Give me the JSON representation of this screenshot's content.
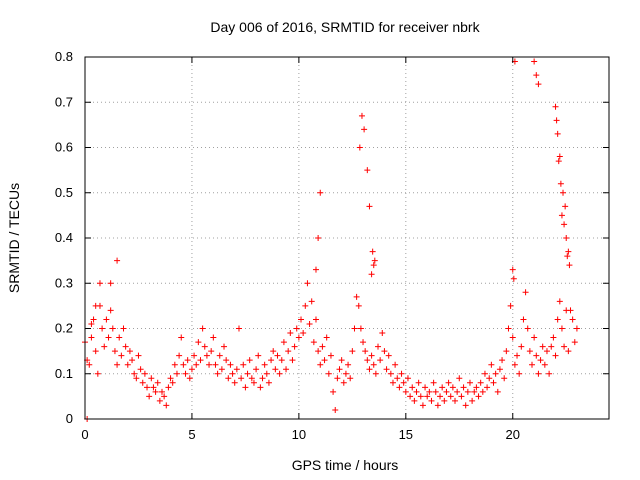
{
  "chart_data": {
    "type": "scatter",
    "title": "Day 006 of 2016, SRMTID for receiver nbrk",
    "xlabel": "GPS time / hours",
    "ylabel": "SRMTID / TECUs",
    "xlim": [
      0,
      24.5
    ],
    "ylim": [
      0,
      0.8
    ],
    "xticks": [
      0,
      5,
      10,
      15,
      20
    ],
    "xtick_labels": [
      "0",
      "5",
      "10",
      "15",
      "20"
    ],
    "yticks": [
      0,
      0.1,
      0.2,
      0.3,
      0.4,
      0.5,
      0.6,
      0.7,
      0.8
    ],
    "ytick_labels": [
      "0",
      "0.1",
      "0.2",
      "0.3",
      "0.4",
      "0.5",
      "0.6",
      "0.7",
      "0.8"
    ],
    "grid": true,
    "marker": "+",
    "colors": {
      "series": "#ff0000",
      "grid": "#a0a0a0",
      "axis": "#000000"
    },
    "series": [
      {
        "name": "nbrk",
        "x": [
          0.0,
          0.1,
          0.2,
          0.3,
          0.4,
          0.5,
          0.6,
          0.7,
          0.8,
          0.9,
          1.0,
          1.1,
          1.2,
          1.3,
          1.4,
          1.5,
          1.6,
          1.7,
          1.8,
          1.9,
          2.0,
          2.1,
          2.2,
          2.3,
          2.4,
          2.5,
          2.6,
          2.7,
          2.8,
          2.9,
          3.0,
          3.1,
          3.2,
          3.3,
          3.4,
          3.5,
          3.6,
          3.7,
          3.8,
          3.9,
          4.0,
          4.1,
          4.2,
          4.3,
          4.4,
          4.5,
          4.6,
          4.7,
          4.8,
          4.9,
          5.0,
          5.1,
          5.2,
          5.3,
          5.4,
          5.5,
          5.6,
          5.7,
          5.8,
          5.9,
          6.0,
          6.1,
          6.2,
          6.3,
          6.4,
          6.5,
          6.6,
          6.7,
          6.8,
          6.9,
          7.0,
          7.1,
          7.2,
          7.3,
          7.4,
          7.5,
          7.6,
          7.7,
          7.8,
          7.9,
          8.0,
          8.1,
          8.2,
          8.3,
          8.4,
          8.5,
          8.6,
          8.7,
          8.8,
          8.9,
          9.0,
          9.1,
          9.2,
          9.3,
          9.4,
          9.5,
          9.6,
          9.7,
          9.8,
          9.9,
          10.0,
          10.1,
          10.2,
          10.3,
          10.4,
          10.5,
          10.6,
          10.7,
          10.8,
          10.9,
          11.0,
          11.1,
          11.2,
          11.3,
          11.4,
          11.5,
          11.6,
          11.7,
          11.8,
          11.9,
          12.0,
          12.1,
          12.2,
          12.3,
          12.4,
          12.5,
          12.6,
          12.7,
          12.8,
          12.9,
          13.0,
          13.1,
          13.2,
          13.3,
          13.4,
          13.5,
          13.6,
          13.7,
          13.8,
          13.9,
          14.0,
          14.1,
          14.2,
          14.3,
          14.4,
          14.5,
          14.6,
          14.7,
          14.8,
          14.9,
          15.0,
          15.1,
          15.2,
          15.3,
          15.4,
          15.5,
          15.6,
          15.7,
          15.8,
          15.9,
          16.0,
          16.1,
          16.2,
          16.3,
          16.4,
          16.5,
          16.6,
          16.7,
          16.8,
          16.9,
          17.0,
          17.1,
          17.2,
          17.3,
          17.4,
          17.5,
          17.6,
          17.7,
          17.8,
          17.9,
          18.0,
          18.1,
          18.2,
          18.3,
          18.4,
          18.5,
          18.6,
          18.7,
          18.8,
          18.9,
          19.0,
          19.1,
          19.2,
          19.3,
          19.4,
          19.5,
          19.6,
          19.7,
          19.8,
          19.9,
          20.0,
          20.1,
          20.2,
          20.3,
          20.4,
          20.5,
          20.6,
          20.7,
          20.8,
          20.9,
          21.0,
          21.1,
          21.2,
          21.3,
          21.4,
          21.5,
          21.6,
          21.7,
          21.8,
          21.9,
          22.0,
          22.1,
          22.2,
          22.3,
          22.4,
          22.5,
          22.6,
          22.7,
          22.8,
          22.9,
          23.0,
          0.1,
          0.3,
          0.5,
          0.7,
          1.2,
          1.5,
          10.8,
          10.9,
          11.0,
          12.85,
          12.95,
          13.05,
          13.2,
          13.3,
          13.4,
          13.45,
          13.5,
          13.55,
          20.0,
          20.05,
          20.1,
          21.0,
          21.1,
          21.2,
          22.0,
          22.05,
          22.1,
          22.15,
          22.2,
          22.25,
          22.3,
          22.35,
          22.4,
          22.45,
          22.5,
          22.55,
          22.6,
          22.65
        ],
        "y": [
          0.17,
          0.0,
          0.12,
          0.18,
          0.22,
          0.15,
          0.1,
          0.25,
          0.2,
          0.16,
          0.22,
          0.18,
          0.24,
          0.2,
          0.15,
          0.12,
          0.18,
          0.14,
          0.2,
          0.16,
          0.12,
          0.15,
          0.13,
          0.1,
          0.09,
          0.14,
          0.11,
          0.08,
          0.1,
          0.07,
          0.05,
          0.09,
          0.07,
          0.06,
          0.08,
          0.04,
          0.06,
          0.05,
          0.03,
          0.07,
          0.09,
          0.08,
          0.12,
          0.1,
          0.14,
          0.18,
          0.12,
          0.1,
          0.13,
          0.09,
          0.11,
          0.14,
          0.12,
          0.17,
          0.13,
          0.2,
          0.16,
          0.14,
          0.12,
          0.15,
          0.18,
          0.12,
          0.1,
          0.14,
          0.11,
          0.16,
          0.13,
          0.09,
          0.12,
          0.1,
          0.08,
          0.11,
          0.2,
          0.09,
          0.12,
          0.07,
          0.1,
          0.13,
          0.09,
          0.08,
          0.11,
          0.14,
          0.07,
          0.09,
          0.12,
          0.1,
          0.08,
          0.13,
          0.15,
          0.11,
          0.14,
          0.1,
          0.13,
          0.17,
          0.11,
          0.15,
          0.19,
          0.13,
          0.16,
          0.2,
          0.18,
          0.22,
          0.19,
          0.25,
          0.3,
          0.21,
          0.26,
          0.17,
          0.22,
          0.15,
          0.12,
          0.16,
          0.13,
          0.18,
          0.1,
          0.14,
          0.06,
          0.02,
          0.09,
          0.11,
          0.13,
          0.08,
          0.1,
          0.12,
          0.09,
          0.15,
          0.2,
          0.27,
          0.25,
          0.2,
          0.17,
          0.15,
          0.13,
          0.11,
          0.14,
          0.12,
          0.1,
          0.16,
          0.13,
          0.19,
          0.15,
          0.11,
          0.14,
          0.1,
          0.08,
          0.12,
          0.09,
          0.07,
          0.1,
          0.08,
          0.06,
          0.09,
          0.05,
          0.07,
          0.04,
          0.06,
          0.08,
          0.05,
          0.03,
          0.07,
          0.05,
          0.06,
          0.04,
          0.08,
          0.06,
          0.03,
          0.05,
          0.07,
          0.04,
          0.06,
          0.08,
          0.05,
          0.07,
          0.04,
          0.06,
          0.09,
          0.05,
          0.07,
          0.03,
          0.06,
          0.08,
          0.04,
          0.06,
          0.07,
          0.05,
          0.08,
          0.06,
          0.1,
          0.07,
          0.09,
          0.12,
          0.08,
          0.1,
          0.06,
          0.11,
          0.13,
          0.09,
          0.15,
          0.2,
          0.25,
          0.18,
          0.12,
          0.14,
          0.1,
          0.16,
          0.22,
          0.28,
          0.2,
          0.15,
          0.12,
          0.18,
          0.14,
          0.1,
          0.13,
          0.16,
          0.12,
          0.15,
          0.1,
          0.16,
          0.18,
          0.14,
          0.22,
          0.26,
          0.2,
          0.16,
          0.24,
          0.15,
          0.24,
          0.22,
          0.17,
          0.2,
          0.13,
          0.21,
          0.25,
          0.3,
          0.3,
          0.35,
          0.33,
          0.4,
          0.5,
          0.6,
          0.67,
          0.64,
          0.55,
          0.47,
          0.32,
          0.37,
          0.34,
          0.35,
          0.33,
          0.31,
          0.79,
          0.79,
          0.76,
          0.74,
          0.69,
          0.66,
          0.63,
          0.57,
          0.58,
          0.52,
          0.45,
          0.5,
          0.43,
          0.47,
          0.4,
          0.36,
          0.37,
          0.34
        ]
      }
    ]
  }
}
